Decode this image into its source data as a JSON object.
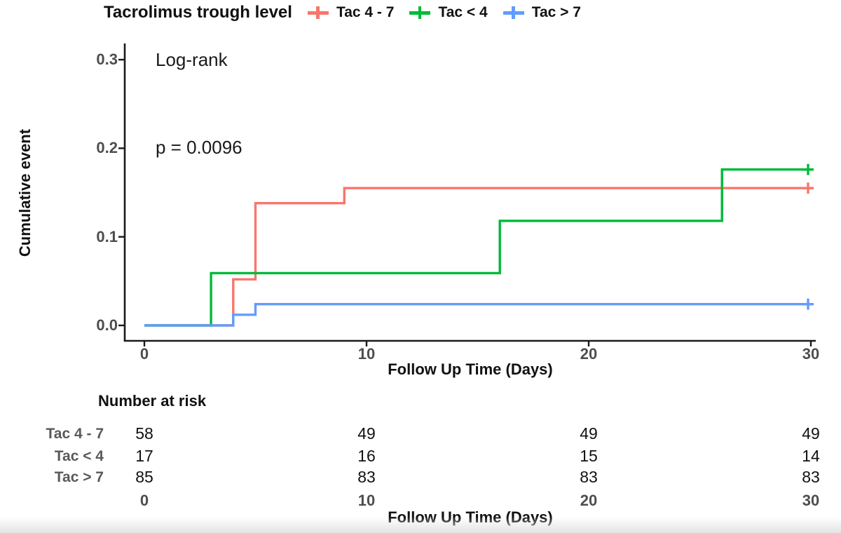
{
  "legend": {
    "title": "Tacrolimus trough level",
    "items": [
      {
        "label": "Tac 4 - 7",
        "color": "#F8766D"
      },
      {
        "label": "Tac < 4",
        "color": "#00BA38"
      },
      {
        "label": "Tac > 7",
        "color": "#619CFF"
      }
    ]
  },
  "annotations": {
    "test_name": "Log-rank",
    "p_value": "p = 0.0096"
  },
  "chart_data": {
    "type": "line",
    "subtype": "cumulative-incidence-step (Kaplan-Meier style)",
    "title": "Tacrolimus trough level",
    "xlabel": "Follow Up Time (Days)",
    "ylabel": "Cumulative event",
    "xlim": [
      0,
      30
    ],
    "ylim": [
      0.0,
      0.3
    ],
    "x_ticks": [
      0,
      10,
      20,
      30
    ],
    "y_ticks": [
      0.0,
      0.1,
      0.2,
      0.3
    ],
    "grid": false,
    "legend_position": "top",
    "series": [
      {
        "name": "Tac 4 - 7",
        "color": "#F8766D",
        "steps": [
          [
            0,
            0
          ],
          [
            4,
            0.052
          ],
          [
            5,
            0.138
          ],
          [
            9,
            0.155
          ],
          [
            30,
            0.155
          ]
        ],
        "censor_marks": [
          [
            30,
            0.155
          ]
        ]
      },
      {
        "name": "Tac < 4",
        "color": "#00BA38",
        "steps": [
          [
            0,
            0
          ],
          [
            3,
            0.059
          ],
          [
            16,
            0.118
          ],
          [
            26,
            0.176
          ],
          [
            30,
            0.176
          ]
        ],
        "censor_marks": [
          [
            30,
            0.176
          ]
        ]
      },
      {
        "name": "Tac > 7",
        "color": "#619CFF",
        "steps": [
          [
            0,
            0
          ],
          [
            4,
            0.012
          ],
          [
            5,
            0.024
          ],
          [
            30,
            0.024
          ]
        ],
        "censor_marks": [
          [
            30,
            0.024
          ]
        ]
      }
    ]
  },
  "axis": {
    "x": {
      "ticks": [
        "0",
        "10",
        "20",
        "30"
      ],
      "label": "Follow Up Time (Days)"
    },
    "y": {
      "ticks": [
        "0.0",
        "0.1",
        "0.2",
        "0.3"
      ],
      "label": "Cumulative event"
    }
  },
  "risk_table": {
    "title": "Number at risk",
    "rows": [
      {
        "label": "Tac 4 - 7",
        "values": [
          "58",
          "49",
          "49",
          "49"
        ]
      },
      {
        "label": "Tac < 4",
        "values": [
          "17",
          "16",
          "15",
          "14"
        ]
      },
      {
        "label": "Tac > 7",
        "values": [
          "85",
          "83",
          "83",
          "83"
        ]
      }
    ],
    "x_ticks": [
      "0",
      "10",
      "20",
      "30"
    ],
    "xlabel": "Follow Up Time (Days)"
  },
  "colors": {
    "tac_4_7": "#F8766D",
    "tac_lt_4": "#00BA38",
    "tac_gt_7": "#619CFF",
    "axis_line": "#1a1a1a",
    "tick_text": "#4d4d4d",
    "risk_label_text": "#595959"
  }
}
